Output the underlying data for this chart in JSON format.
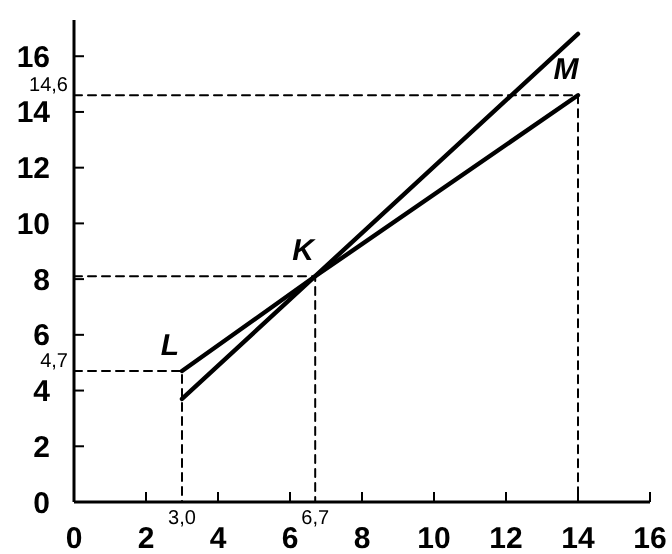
{
  "chart_data": {
    "type": "line",
    "xlim": [
      0,
      16
    ],
    "ylim": [
      0,
      17.3
    ],
    "xticks": [
      0,
      2,
      4,
      6,
      8,
      10,
      12,
      14,
      16
    ],
    "yticks": [
      0,
      2,
      4,
      6,
      8,
      10,
      12,
      14,
      16
    ],
    "grid": false,
    "marker": "none",
    "series": [
      {
        "color": "#000000",
        "x": [
          3,
          6.7,
          14
        ],
        "values": [
          4.7,
          8.1,
          14.6
        ]
      },
      {
        "color": "#000000",
        "x": [
          3,
          14
        ],
        "values": [
          3.7,
          16.8
        ]
      },
      {
        "color": "#000000",
        "line_style": "dashed",
        "x": [
          0,
          3,
          3
        ],
        "values": [
          4.7,
          4.7,
          0
        ]
      },
      {
        "color": "#000000",
        "line_style": "dashed",
        "x": [
          0,
          6.7,
          6.7
        ],
        "values": [
          8.1,
          8.1,
          0
        ]
      },
      {
        "color": "#000000",
        "line_style": "dashed",
        "x": [
          0,
          14,
          14
        ],
        "values": [
          14.6,
          14.6,
          0
        ]
      }
    ],
    "annotations": [
      {
        "text": "L",
        "x": 3,
        "y": 4.7
      },
      {
        "text": "K",
        "x": 6.7,
        "y": 8.1
      },
      {
        "text": "M",
        "x": 14,
        "y": 14.6
      },
      {
        "text": "3,0",
        "x": 3,
        "y": 0
      },
      {
        "text": "6,7",
        "x": 6.7,
        "y": 0
      },
      {
        "text": "4,7",
        "x": 0,
        "y": 4.7
      },
      {
        "text": "14,6",
        "x": 0,
        "y": 14.6
      }
    ]
  }
}
